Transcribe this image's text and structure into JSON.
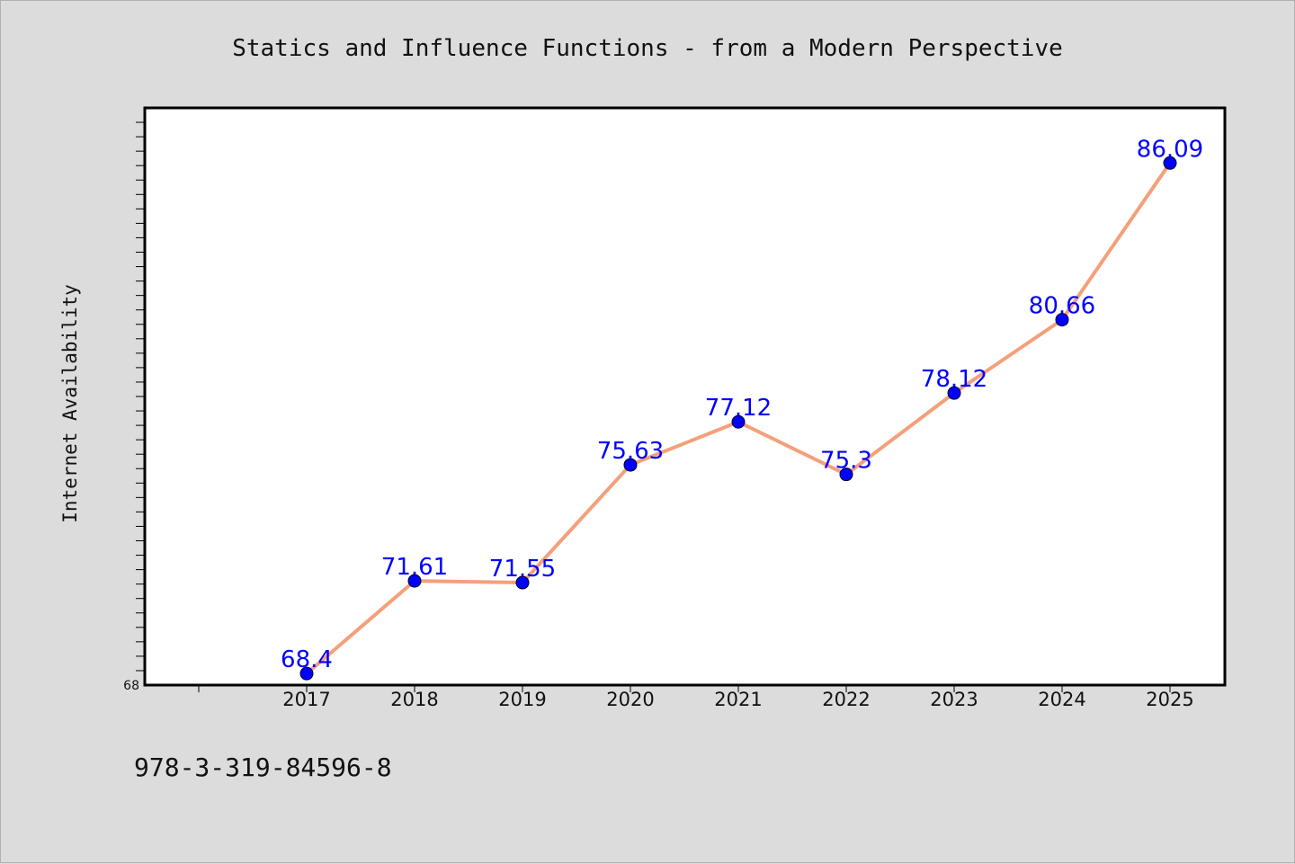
{
  "footer_text": "978-3-319-84596-8",
  "colors": {
    "line": "#f4a07a",
    "marker": "#0000ff",
    "label": "#0000ff",
    "background": "#dcdcdc",
    "plot_bg": "#ffffff"
  },
  "chart_data": {
    "type": "line",
    "title": "Statics and Influence Functions - from a Modern Perspective",
    "xlabel": "",
    "ylabel": "Internet Availability",
    "categories": [
      "2017",
      "2018",
      "2019",
      "2020",
      "2021",
      "2022",
      "2023",
      "2024",
      "2025"
    ],
    "series": [
      {
        "values": [
          68.4,
          71.61,
          71.55,
          75.63,
          77.12,
          75.3,
          78.12,
          80.66,
          86.09
        ]
      }
    ],
    "data_labels": [
      "68.4",
      "71.61",
      "71.55",
      "75.63",
      "77.12",
      "75.3",
      "78.12",
      "80.66",
      "86.09"
    ],
    "ylim": [
      68,
      88
    ],
    "y_tick_labels": [
      "68"
    ],
    "grid": false,
    "legend": "none"
  }
}
